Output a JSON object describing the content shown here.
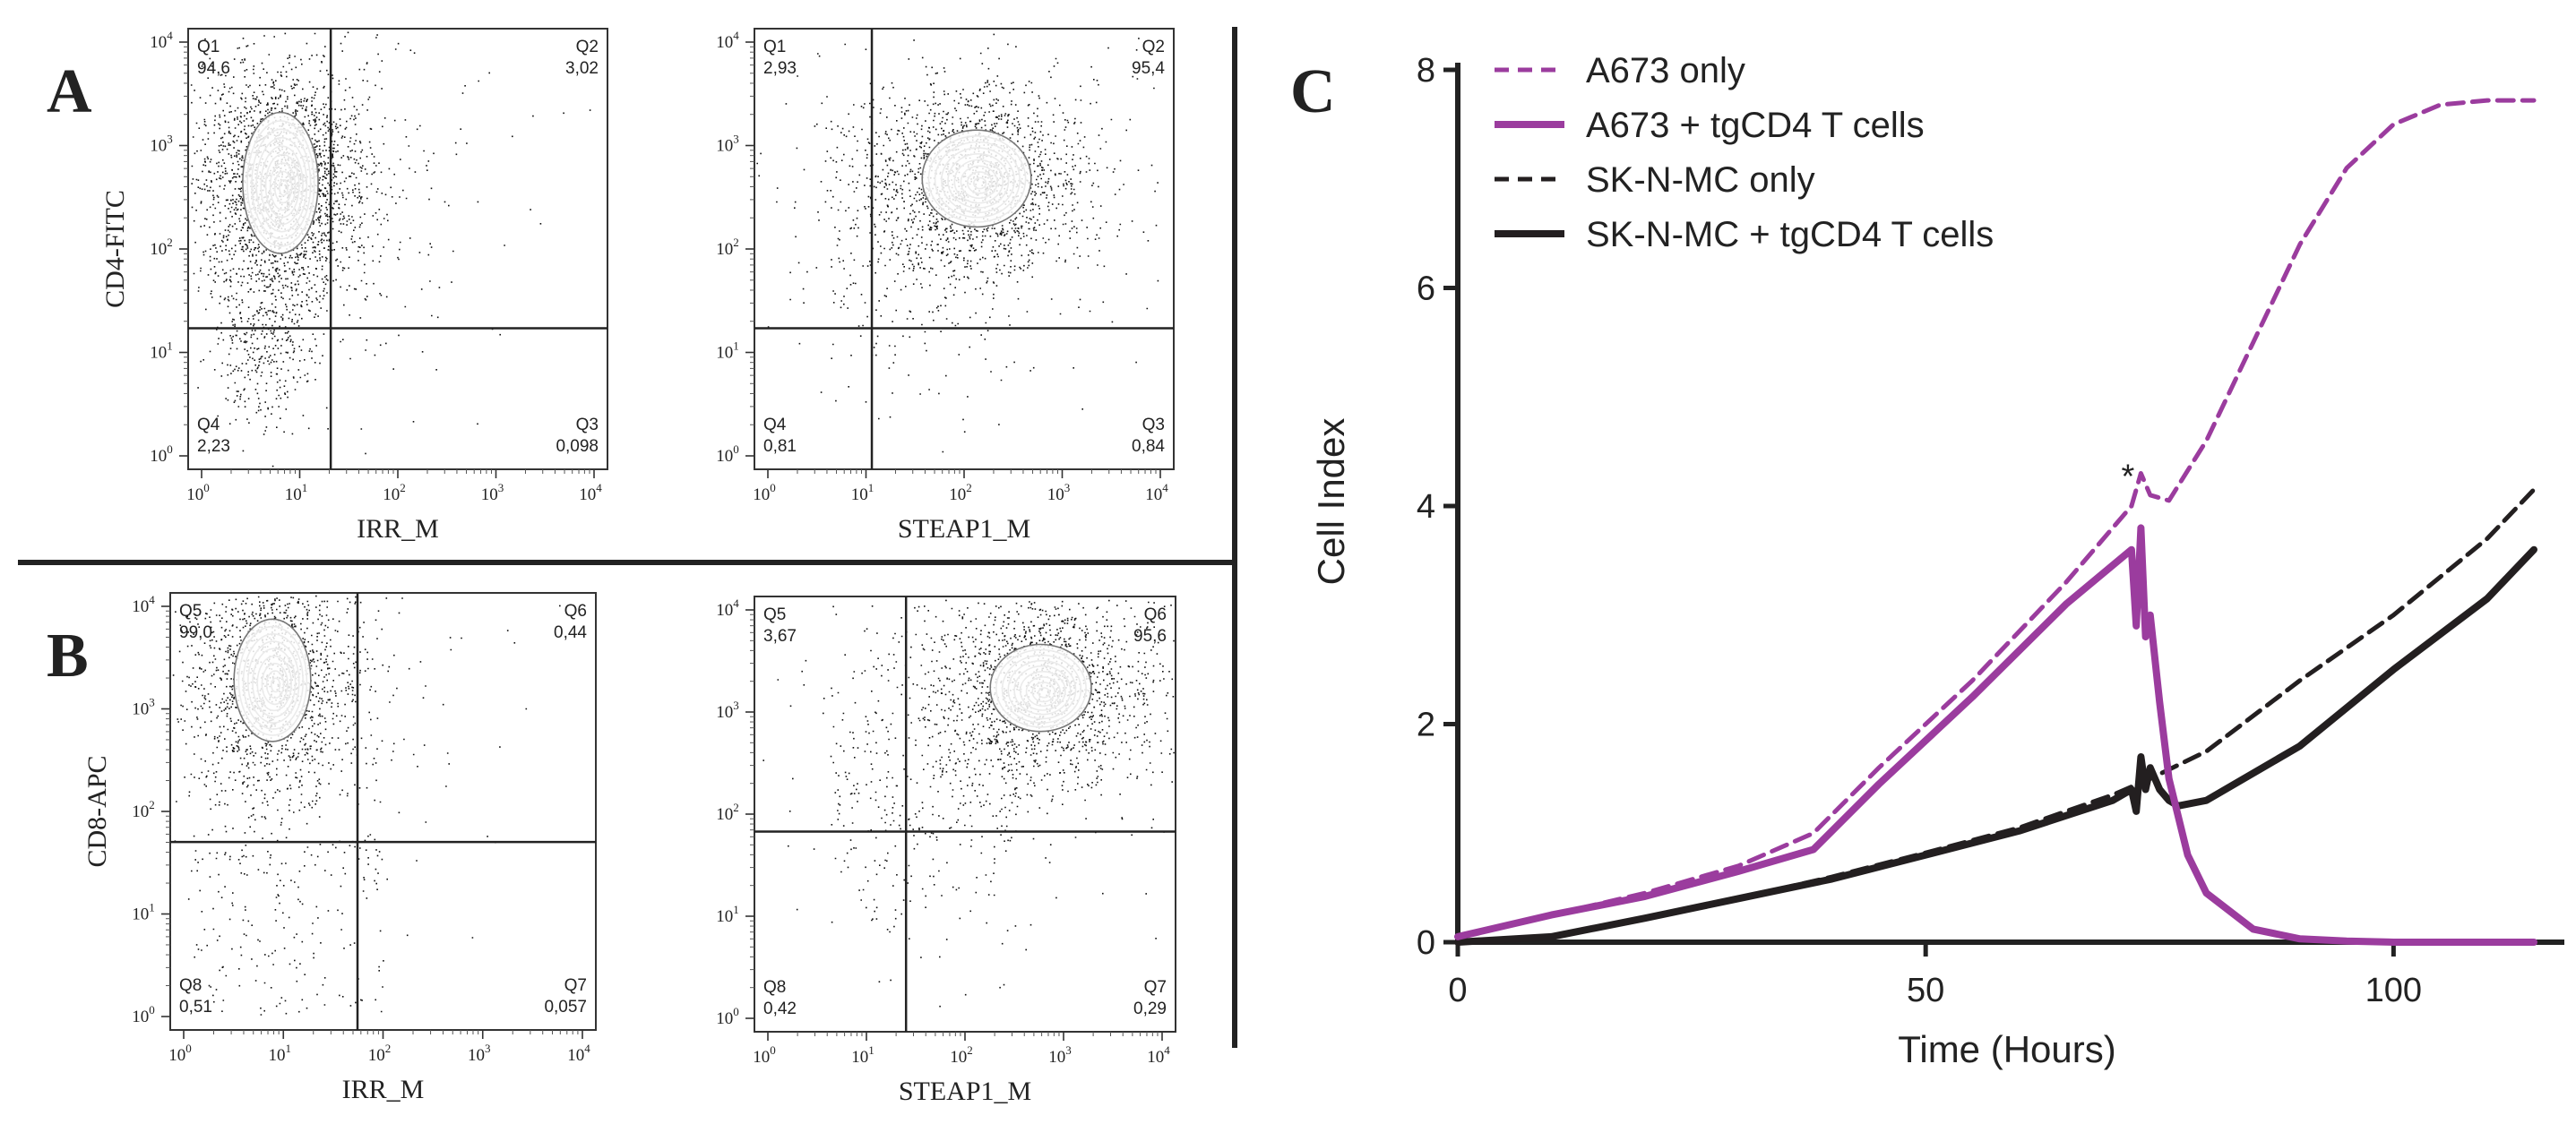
{
  "panels": {
    "a": "A",
    "b": "B",
    "c": "C"
  },
  "flow": {
    "tick_base": "10",
    "tick_exponents": [
      "0",
      "1",
      "2",
      "3",
      "4"
    ],
    "plots": [
      {
        "id": "A-left",
        "xlabel": "IRR_M",
        "ylabel": "CD4-FITC",
        "quadrants": [
          {
            "name": "Q1",
            "value": "94,6"
          },
          {
            "name": "Q2",
            "value": "3,02"
          },
          {
            "name": "Q3",
            "value": "0,098"
          },
          {
            "name": "Q4",
            "value": "2,23"
          }
        ]
      },
      {
        "id": "A-right",
        "xlabel": "STEAP1_M",
        "ylabel": "",
        "quadrants": [
          {
            "name": "Q1",
            "value": "2,93"
          },
          {
            "name": "Q2",
            "value": "95,4"
          },
          {
            "name": "Q3",
            "value": "0,84"
          },
          {
            "name": "Q4",
            "value": "0,81"
          }
        ]
      },
      {
        "id": "B-left",
        "xlabel": "IRR_M",
        "ylabel": "CD8-APC",
        "quadrants": [
          {
            "name": "Q5",
            "value": "99,0"
          },
          {
            "name": "Q6",
            "value": "0,44"
          },
          {
            "name": "Q7",
            "value": "0,057"
          },
          {
            "name": "Q8",
            "value": "0,51"
          }
        ]
      },
      {
        "id": "B-right",
        "xlabel": "STEAP1_M",
        "ylabel": "",
        "quadrants": [
          {
            "name": "Q5",
            "value": "3,67"
          },
          {
            "name": "Q6",
            "value": "95,6"
          },
          {
            "name": "Q7",
            "value": "0,29"
          },
          {
            "name": "Q8",
            "value": "0,42"
          }
        ]
      }
    ]
  },
  "chart_data": {
    "type": "line",
    "title": "",
    "xlabel": "Time (Hours)",
    "ylabel": "Cell Index",
    "xlim": [
      0,
      120
    ],
    "ylim": [
      0,
      8
    ],
    "xticks": [
      0,
      50,
      100
    ],
    "yticks": [
      0,
      2,
      4,
      6,
      8
    ],
    "annotation": {
      "text": "*",
      "x": 72,
      "y": 4.35
    },
    "series": [
      {
        "name": "A673 only",
        "color": "#9b3c9e",
        "style": "dashed",
        "x": [
          0,
          10,
          20,
          30,
          38,
          45,
          55,
          65,
          72,
          73,
          74,
          76,
          80,
          85,
          90,
          95,
          100,
          105,
          110,
          115
        ],
        "y": [
          0.05,
          0.25,
          0.45,
          0.7,
          1.0,
          1.6,
          2.4,
          3.3,
          4.0,
          4.3,
          4.1,
          4.05,
          4.6,
          5.5,
          6.4,
          7.1,
          7.5,
          7.68,
          7.72,
          7.72
        ]
      },
      {
        "name": "A673 + tgCD4 T cells",
        "color": "#9b3c9e",
        "style": "solid",
        "x": [
          0,
          10,
          20,
          30,
          38,
          45,
          55,
          65,
          72,
          72.5,
          73,
          73.5,
          74,
          75,
          76,
          78,
          80,
          85,
          90,
          95,
          100,
          115
        ],
        "y": [
          0.05,
          0.25,
          0.42,
          0.65,
          0.85,
          1.45,
          2.25,
          3.1,
          3.6,
          2.9,
          3.8,
          2.8,
          3.0,
          2.2,
          1.5,
          0.8,
          0.45,
          0.12,
          0.03,
          0.01,
          0.0,
          0.0
        ]
      },
      {
        "name": "SK-N-MC only",
        "color": "#231f20",
        "style": "dashed",
        "x": [
          0,
          10,
          20,
          30,
          40,
          50,
          60,
          70,
          74,
          80,
          90,
          100,
          110,
          115
        ],
        "y": [
          0.0,
          0.05,
          0.22,
          0.4,
          0.6,
          0.82,
          1.05,
          1.35,
          1.5,
          1.75,
          2.4,
          3.0,
          3.7,
          4.15
        ]
      },
      {
        "name": "SK-N-MC + tgCD4 T cells",
        "color": "#231f20",
        "style": "solid",
        "x": [
          0,
          10,
          20,
          30,
          40,
          50,
          60,
          70,
          72,
          72.5,
          73,
          73.5,
          74,
          75,
          76,
          77,
          80,
          90,
          100,
          110,
          115
        ],
        "y": [
          0.0,
          0.05,
          0.22,
          0.4,
          0.58,
          0.8,
          1.02,
          1.3,
          1.4,
          1.2,
          1.7,
          1.4,
          1.6,
          1.4,
          1.3,
          1.25,
          1.3,
          1.8,
          2.5,
          3.15,
          3.6
        ]
      }
    ]
  }
}
